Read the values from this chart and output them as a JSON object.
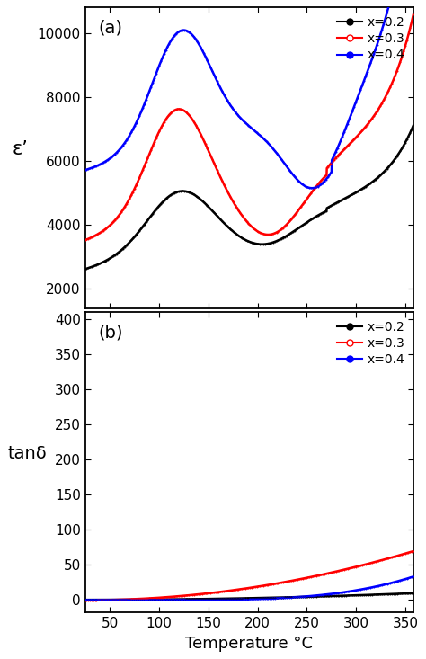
{
  "title_a": "(a)",
  "title_b": "(b)",
  "xlabel": "Temperature °C",
  "ylabel_a": "ε’",
  "ylabel_b": "tanδ",
  "legend_labels": [
    "x=0.2",
    "x=0.3",
    "x=0.4"
  ],
  "colors": [
    "#000000",
    "#ff0000",
    "#0000ff"
  ],
  "x_range": [
    25,
    358
  ],
  "yticks_a": [
    2000,
    4000,
    6000,
    8000,
    10000
  ],
  "ylim_a": [
    1400,
    10800
  ],
  "yticks_b": [
    0,
    50,
    100,
    150,
    200,
    250,
    300,
    350,
    400
  ],
  "ylim_b": [
    -18,
    410
  ],
  "xticks": [
    50,
    100,
    150,
    200,
    250,
    300,
    350
  ]
}
